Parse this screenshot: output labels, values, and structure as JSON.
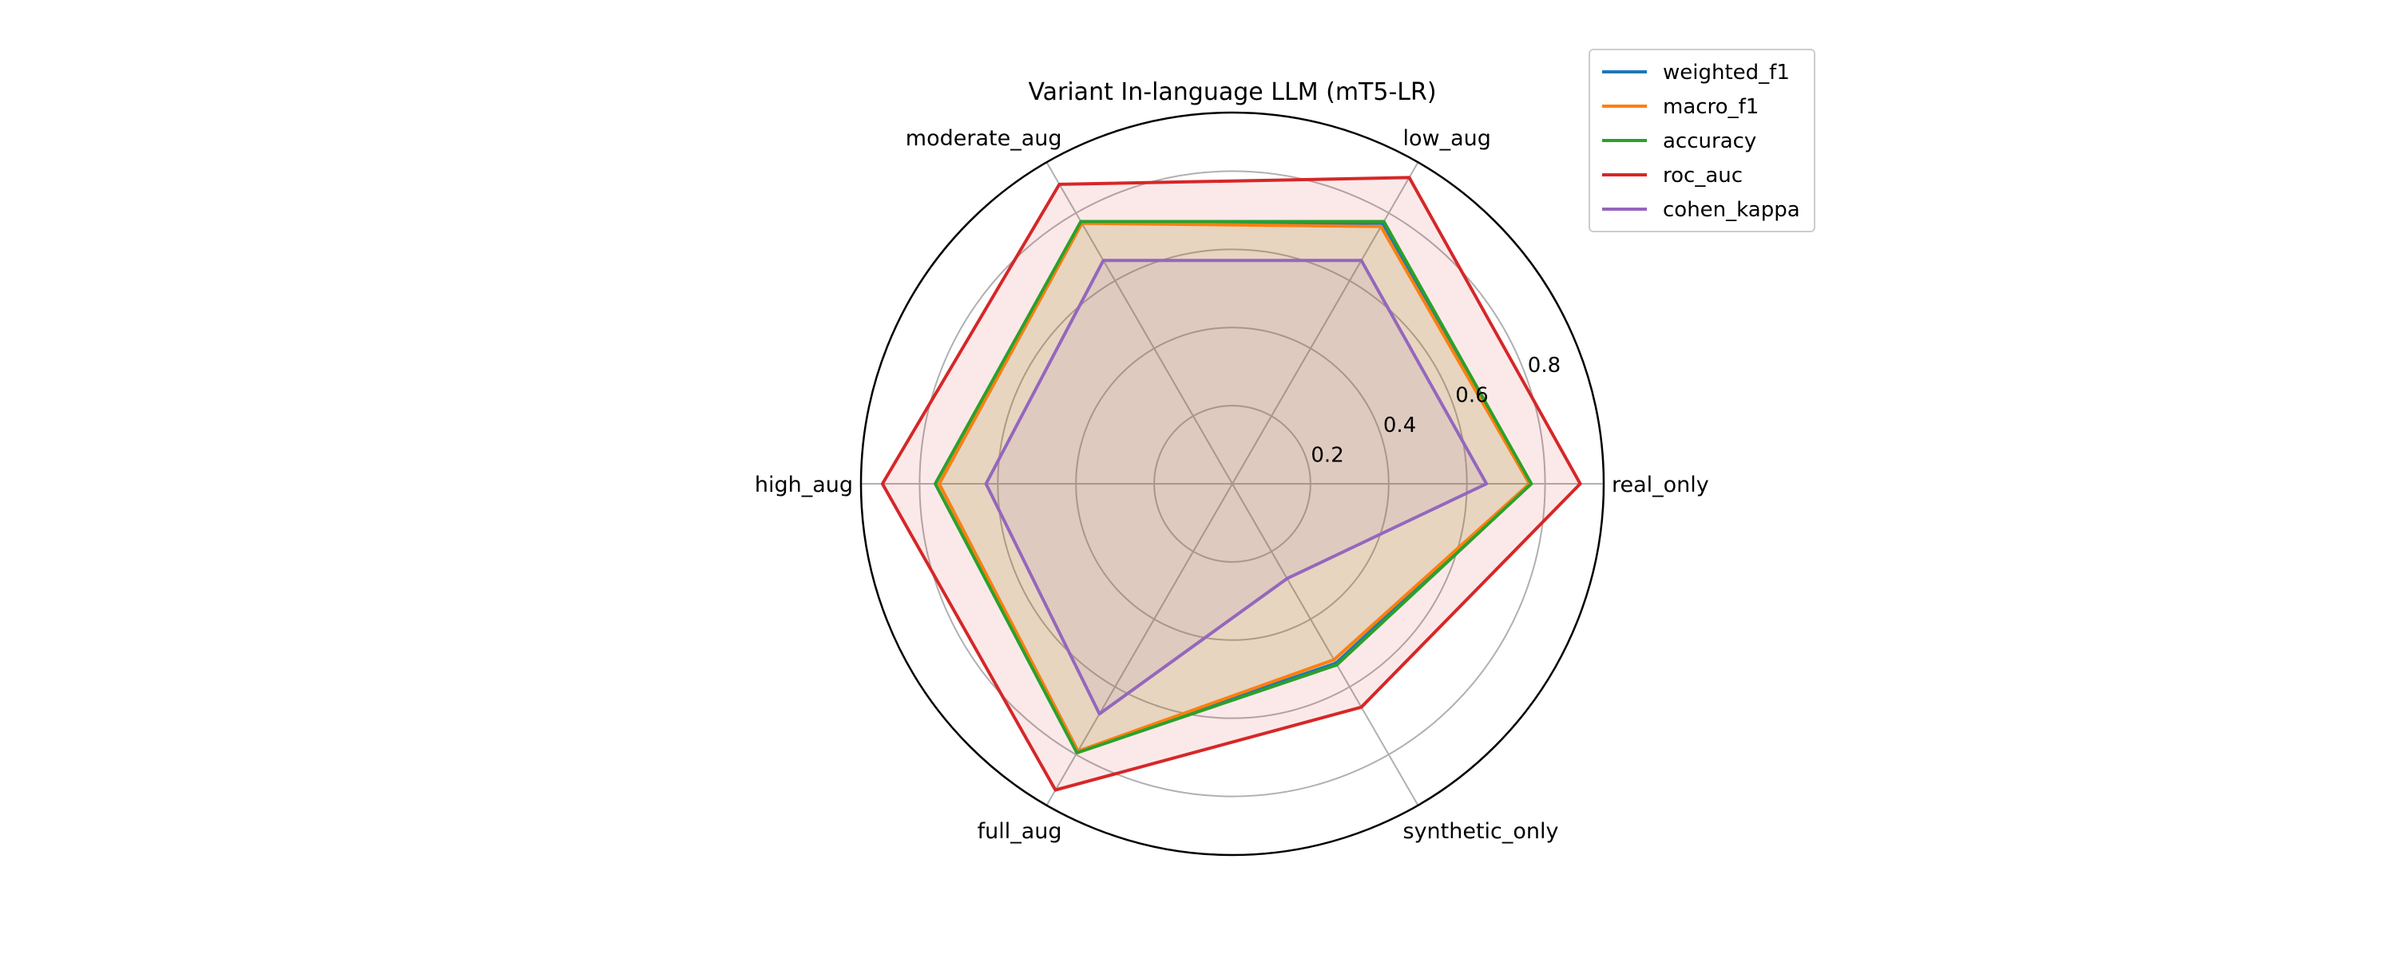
{
  "chart_data": {
    "type": "radar",
    "title": "Variant In-language LLM (mT5-LR)",
    "categories": [
      "real_only",
      "low_aug",
      "moderate_aug",
      "high_aug",
      "full_aug",
      "synthetic_only"
    ],
    "rlim": [
      0,
      0.95
    ],
    "rticks": [
      0.2,
      0.4,
      0.6,
      0.8
    ],
    "rtick_labels": [
      "0.2",
      "0.4",
      "0.6",
      "0.8"
    ],
    "grid": true,
    "legend_position": "upper-right",
    "series": [
      {
        "name": "weighted_f1",
        "color": "#1f77b4",
        "fill": false,
        "values": [
          0.76,
          0.77,
          0.77,
          0.75,
          0.79,
          0.53
        ]
      },
      {
        "name": "macro_f1",
        "color": "#ff7f0e",
        "fill": true,
        "values": [
          0.76,
          0.76,
          0.77,
          0.75,
          0.79,
          0.52
        ]
      },
      {
        "name": "accuracy",
        "color": "#2ca02c",
        "fill": true,
        "values": [
          0.765,
          0.775,
          0.775,
          0.76,
          0.795,
          0.535
        ]
      },
      {
        "name": "roc_auc",
        "color": "#d62728",
        "fill": true,
        "values": [
          0.89,
          0.905,
          0.885,
          0.895,
          0.905,
          0.66
        ]
      },
      {
        "name": "cohen_kappa",
        "color": "#9467bd",
        "fill": true,
        "values": [
          0.65,
          0.66,
          0.66,
          0.63,
          0.68,
          0.28
        ]
      }
    ]
  }
}
